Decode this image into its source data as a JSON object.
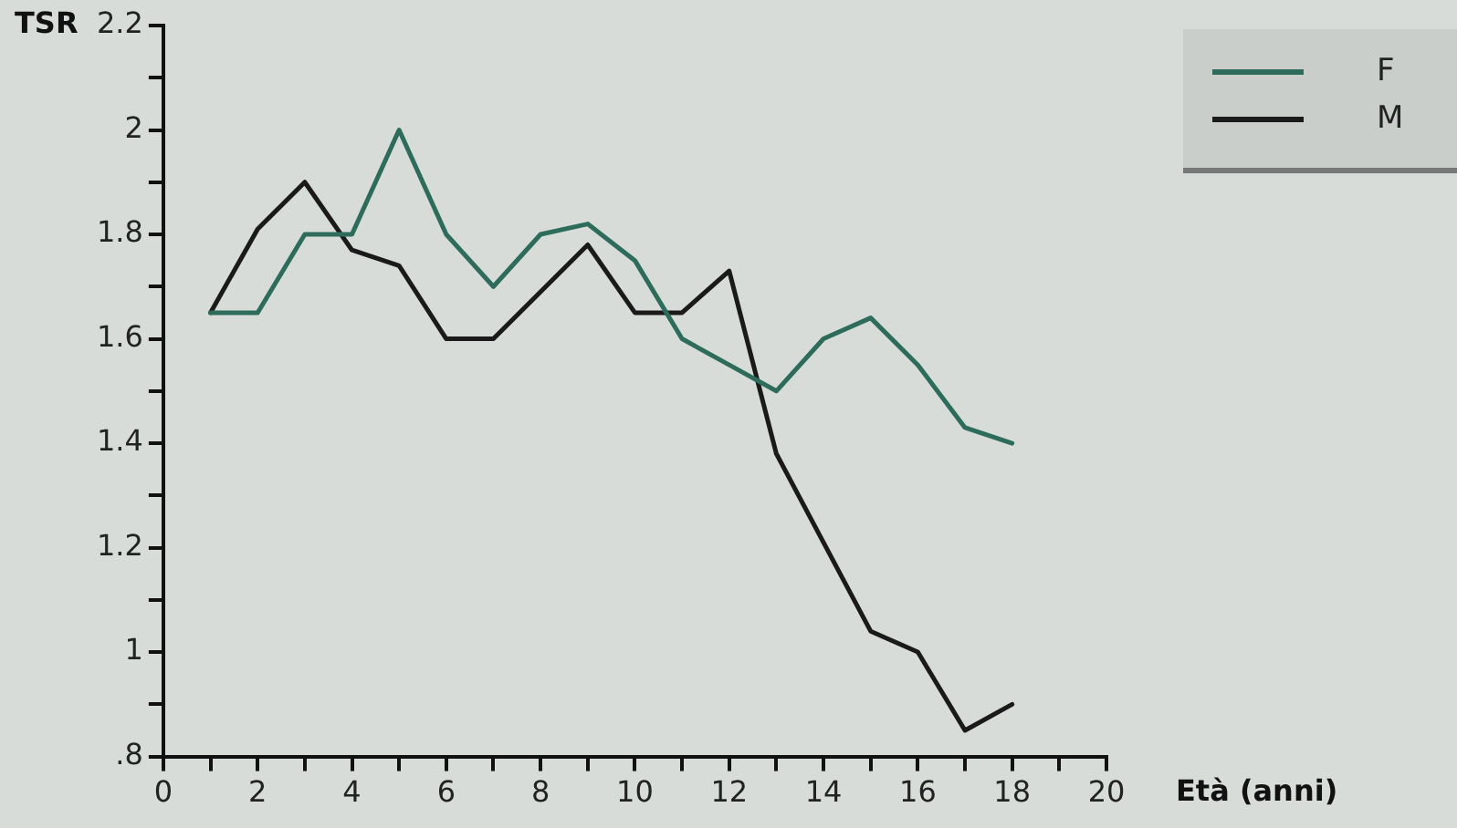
{
  "chart_data": {
    "type": "line",
    "ylabel": "TSR",
    "xlabel": "Età (anni)",
    "x": [
      1,
      2,
      3,
      4,
      5,
      6,
      7,
      8,
      9,
      10,
      11,
      12,
      13,
      14,
      15,
      16,
      17,
      18
    ],
    "series": [
      {
        "name": "F",
        "color": "#2d6b5b",
        "values": [
          1.65,
          1.65,
          1.8,
          1.8,
          2.0,
          1.8,
          1.7,
          1.8,
          1.82,
          1.75,
          1.6,
          1.55,
          1.5,
          1.6,
          1.64,
          1.55,
          1.43,
          1.4
        ]
      },
      {
        "name": "M",
        "color": "#1a1a1a",
        "values": [
          1.65,
          1.81,
          1.9,
          1.77,
          1.74,
          1.6,
          1.6,
          1.69,
          1.78,
          1.65,
          1.65,
          1.73,
          1.38,
          1.21,
          1.04,
          1.0,
          0.85,
          0.9
        ]
      }
    ],
    "xlim": [
      0,
      20
    ],
    "xticks": [
      0,
      {
        "value": 1,
        "label": null
      },
      2,
      {
        "value": 3,
        "label": null
      },
      4,
      {
        "value": 5,
        "label": null
      },
      6,
      {
        "value": 7,
        "label": null
      },
      8,
      {
        "value": 9,
        "label": null
      },
      10,
      {
        "value": 11,
        "label": null
      },
      12,
      {
        "value": 13,
        "label": null
      },
      14,
      {
        "value": 15,
        "label": null
      },
      16,
      {
        "value": 17,
        "label": null
      },
      18,
      {
        "value": 19,
        "label": null
      },
      20
    ],
    "ylim": [
      0.8,
      2.2
    ],
    "yticks": [
      {
        "value": 0.8,
        "label": ".8"
      },
      {
        "value": 0.9,
        "label": null
      },
      1,
      {
        "value": 1.1,
        "label": null
      },
      1.2,
      {
        "value": 1.3,
        "label": null
      },
      1.4,
      {
        "value": 1.5,
        "label": null
      },
      1.6,
      {
        "value": 1.7,
        "label": null
      },
      1.8,
      {
        "value": 1.9,
        "label": null
      },
      2,
      {
        "value": 2.1,
        "label": null
      },
      2.2
    ],
    "legend": "top right",
    "marker": "none",
    "line_style": "solid"
  }
}
